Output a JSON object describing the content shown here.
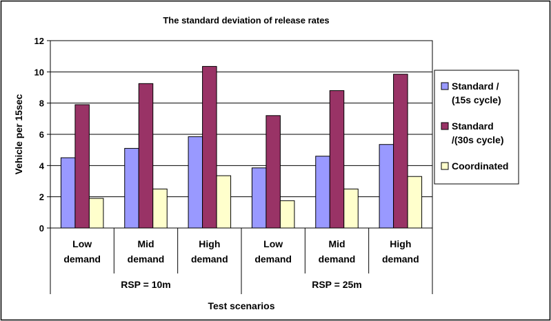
{
  "chart_data": {
    "type": "bar",
    "title": "The standard deviation of release rates",
    "xlabel": "Test scenarios",
    "ylabel": "Vehicle per 15sec",
    "ylim": [
      0,
      12
    ],
    "yticks": [
      0,
      2,
      4,
      6,
      8,
      10,
      12
    ],
    "grid": true,
    "legend_position": "right",
    "categories": [
      [
        "Low",
        "demand"
      ],
      [
        "Mid",
        "demand"
      ],
      [
        "High",
        "demand"
      ],
      [
        "Low",
        "demand"
      ],
      [
        "Mid",
        "demand"
      ],
      [
        "High",
        "demand"
      ]
    ],
    "groups": [
      {
        "label": "RSP = 10m",
        "span": 3
      },
      {
        "label": "RSP = 25m",
        "span": 3
      }
    ],
    "series": [
      {
        "name": [
          "Standard /",
          "(15s cycle)"
        ],
        "color": "#9999ff",
        "values": [
          4.5,
          5.1,
          5.85,
          3.85,
          4.6,
          5.35
        ]
      },
      {
        "name": [
          "Standard",
          "/(30s cycle)"
        ],
        "color": "#993366",
        "values": [
          7.9,
          9.25,
          10.35,
          7.2,
          8.8,
          9.85
        ]
      },
      {
        "name": [
          "Coordinated"
        ],
        "color": "#ffffcc",
        "values": [
          1.9,
          2.5,
          3.35,
          1.75,
          2.5,
          3.3
        ]
      }
    ]
  }
}
